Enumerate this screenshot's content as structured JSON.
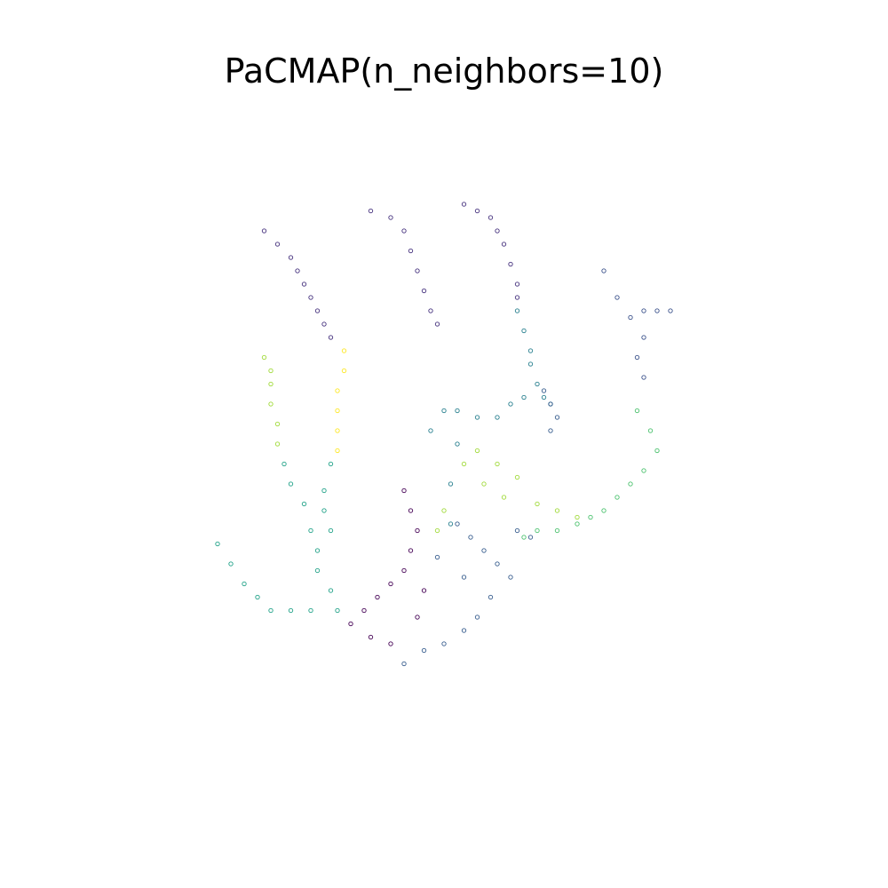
{
  "chart_data": {
    "type": "scatter",
    "title": "PaCMAP(n_neighbors=10)",
    "xlabel": "",
    "ylabel": "",
    "axes_visible": false,
    "grid": false,
    "legend": false,
    "marker": "hollow circle",
    "palette": [
      "#440154",
      "#46327e",
      "#365c8d",
      "#277f8e",
      "#1fa187",
      "#4ac16d",
      "#a0da39",
      "#fde725"
    ],
    "xlim": [
      0,
      100
    ],
    "ylim": [
      0,
      100
    ],
    "series": [
      {
        "color": "#46327e",
        "points": [
          [
            23,
            82
          ],
          [
            25,
            80
          ],
          [
            27,
            78
          ],
          [
            28,
            76
          ],
          [
            29,
            74
          ],
          [
            30,
            72
          ],
          [
            31,
            70
          ],
          [
            32,
            68
          ],
          [
            33,
            66
          ]
        ]
      },
      {
        "color": "#46327e",
        "points": [
          [
            39,
            85
          ],
          [
            42,
            84
          ],
          [
            44,
            82
          ],
          [
            45,
            79
          ],
          [
            46,
            76
          ],
          [
            47,
            73
          ],
          [
            48,
            70
          ],
          [
            49,
            68
          ]
        ]
      },
      {
        "color": "#46327e",
        "points": [
          [
            53,
            86
          ],
          [
            55,
            85
          ],
          [
            57,
            84
          ],
          [
            58,
            82
          ],
          [
            59,
            80
          ],
          [
            60,
            77
          ],
          [
            61,
            74
          ],
          [
            61,
            72
          ]
        ]
      },
      {
        "color": "#277f8e",
        "points": [
          [
            61,
            70
          ],
          [
            62,
            67
          ],
          [
            63,
            64
          ],
          [
            63,
            62
          ],
          [
            64,
            59
          ],
          [
            65,
            57
          ],
          [
            66,
            56
          ]
        ]
      },
      {
        "color": "#365c8d",
        "points": [
          [
            65,
            58
          ],
          [
            66,
            56
          ],
          [
            67,
            54
          ],
          [
            66,
            52
          ]
        ]
      },
      {
        "color": "#3b528b",
        "points": [
          [
            74,
            76
          ],
          [
            76,
            72
          ],
          [
            78,
            69
          ],
          [
            80,
            70
          ],
          [
            82,
            70
          ],
          [
            84,
            70
          ],
          [
            80,
            66
          ],
          [
            79,
            63
          ],
          [
            80,
            60
          ]
        ]
      },
      {
        "color": "#4ac16d",
        "points": [
          [
            79,
            55
          ],
          [
            81,
            52
          ],
          [
            82,
            49
          ],
          [
            80,
            46
          ],
          [
            78,
            44
          ],
          [
            76,
            42
          ],
          [
            74,
            40
          ],
          [
            72,
            39
          ],
          [
            70,
            38
          ],
          [
            67,
            37
          ],
          [
            64,
            37
          ],
          [
            62,
            36
          ]
        ]
      },
      {
        "color": "#a0da39",
        "points": [
          [
            55,
            49
          ],
          [
            58,
            47
          ],
          [
            61,
            45
          ],
          [
            64,
            41
          ],
          [
            67,
            40
          ],
          [
            70,
            39
          ],
          [
            59,
            42
          ],
          [
            56,
            44
          ],
          [
            53,
            47
          ],
          [
            50,
            40
          ],
          [
            49,
            37
          ]
        ]
      },
      {
        "color": "#a0da39",
        "points": [
          [
            23,
            63
          ],
          [
            24,
            61
          ],
          [
            24,
            59
          ],
          [
            24,
            56
          ],
          [
            25,
            53
          ],
          [
            25,
            50
          ]
        ]
      },
      {
        "color": "#fde725",
        "points": [
          [
            35,
            64
          ],
          [
            35,
            61
          ],
          [
            34,
            58
          ],
          [
            34,
            55
          ],
          [
            34,
            52
          ],
          [
            34,
            49
          ]
        ]
      },
      {
        "color": "#1fa187",
        "points": [
          [
            26,
            47
          ],
          [
            27,
            44
          ],
          [
            29,
            41
          ],
          [
            30,
            37
          ],
          [
            31,
            34
          ],
          [
            31,
            31
          ],
          [
            33,
            28
          ],
          [
            34,
            25
          ],
          [
            33,
            47
          ],
          [
            32,
            43
          ],
          [
            32,
            40
          ],
          [
            33,
            37
          ]
        ]
      },
      {
        "color": "#1fa187",
        "points": [
          [
            16,
            35
          ],
          [
            18,
            32
          ],
          [
            20,
            29
          ],
          [
            22,
            27
          ],
          [
            24,
            25
          ],
          [
            27,
            25
          ],
          [
            30,
            25
          ]
        ]
      },
      {
        "color": "#440154",
        "points": [
          [
            44,
            43
          ],
          [
            45,
            40
          ],
          [
            46,
            37
          ],
          [
            45,
            34
          ],
          [
            44,
            31
          ],
          [
            42,
            29
          ],
          [
            40,
            27
          ],
          [
            38,
            25
          ],
          [
            36,
            23
          ],
          [
            39,
            21
          ],
          [
            42,
            20
          ],
          [
            46,
            24
          ],
          [
            47,
            28
          ]
        ]
      },
      {
        "color": "#365c8d",
        "points": [
          [
            52,
            38
          ],
          [
            54,
            36
          ],
          [
            56,
            34
          ],
          [
            58,
            32
          ],
          [
            60,
            30
          ],
          [
            57,
            27
          ],
          [
            55,
            24
          ],
          [
            53,
            22
          ],
          [
            50,
            20
          ],
          [
            47,
            19
          ],
          [
            44,
            17
          ],
          [
            49,
            33
          ],
          [
            53,
            30
          ],
          [
            61,
            37
          ],
          [
            63,
            36
          ]
        ]
      },
      {
        "color": "#277f8e",
        "points": [
          [
            48,
            52
          ],
          [
            50,
            55
          ],
          [
            52,
            55
          ],
          [
            55,
            54
          ],
          [
            58,
            54
          ],
          [
            60,
            56
          ],
          [
            62,
            57
          ],
          [
            52,
            50
          ],
          [
            51,
            44
          ],
          [
            51,
            38
          ]
        ]
      }
    ]
  }
}
